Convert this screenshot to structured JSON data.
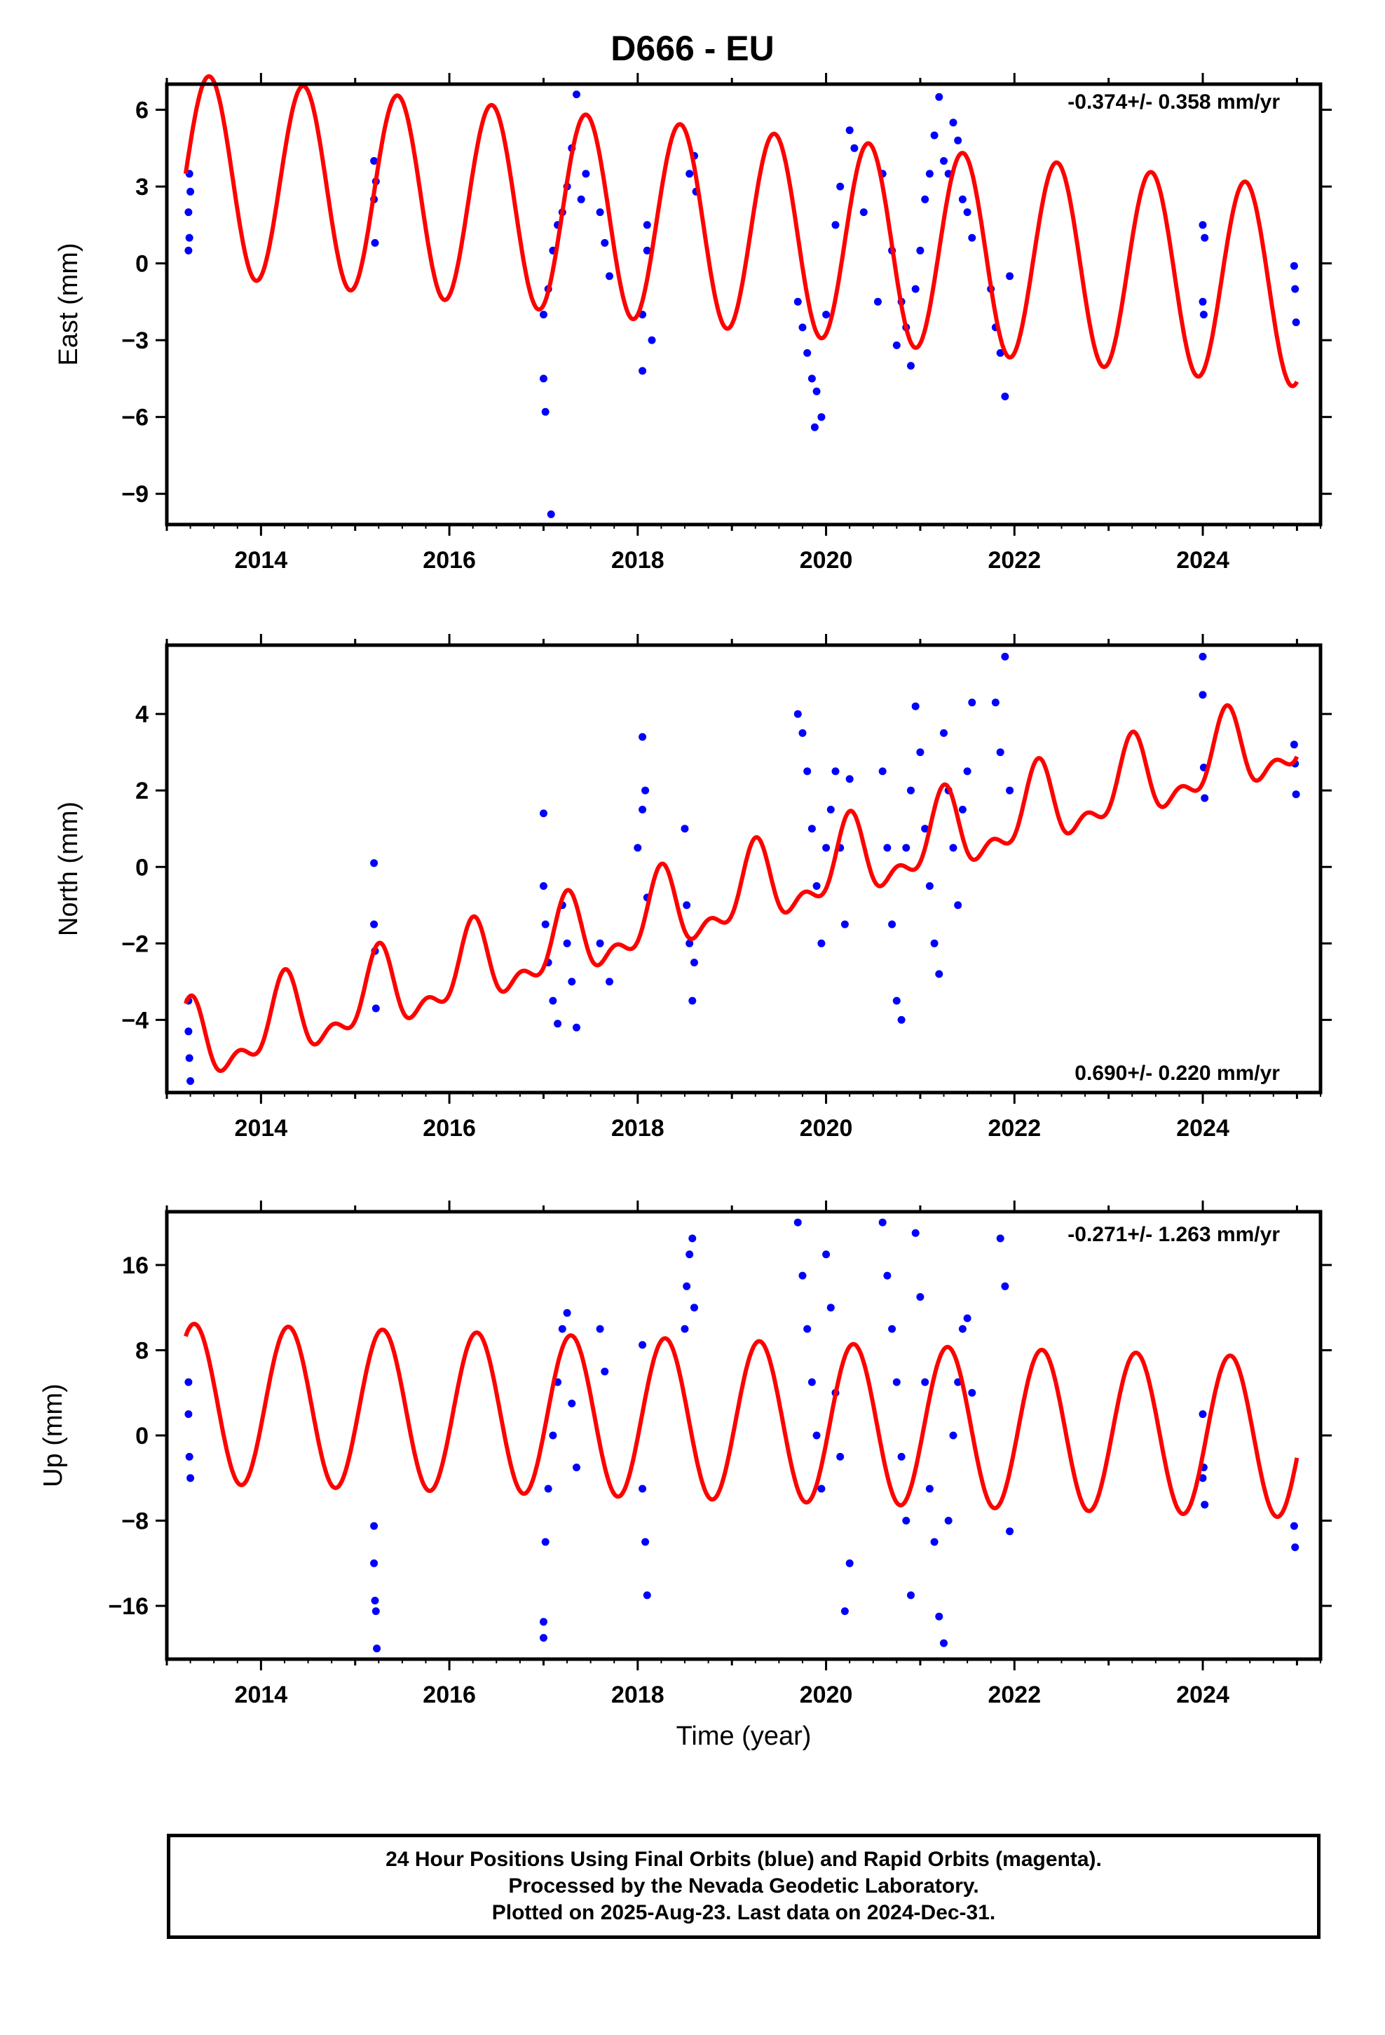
{
  "header": {
    "title": "D666 - EU"
  },
  "footer": {
    "line1": "24 Hour Positions Using Final Orbits (blue) and Rapid Orbits (magenta).",
    "line2": "Processed by the Nevada Geodetic Laboratory.",
    "line3": "Plotted on 2025-Aug-23. Last data on 2024-Dec-31."
  },
  "colors": {
    "data": "#0000ff",
    "model": "#ff0000",
    "frame": "#000000"
  },
  "chart_data": [
    {
      "type": "scatter",
      "title": "D666 - EU",
      "ylabel": "East (mm)",
      "xlabel": "",
      "rate": "-0.374+/- 0.358 mm/yr",
      "xlim": [
        2013.0,
        2025.25
      ],
      "ylim": [
        -10.2,
        7.0
      ],
      "xticks": [
        2014,
        2016,
        2018,
        2020,
        2022,
        2024
      ],
      "yticks": [
        6,
        3,
        0,
        -3,
        -6,
        -9
      ],
      "ytick_labels": [
        "6",
        "3",
        "0",
        "−3",
        "−6",
        "−9"
      ],
      "model": {
        "start_year": 2013.2,
        "end_year": 2025.0,
        "offset": 3.5,
        "rate": -0.374,
        "annual_amp": 3.9,
        "annual_phase": 0.0
      },
      "series": [
        {
          "name": "Final Orbits",
          "x": [
            2013.23,
            2013.23,
            2013.24,
            2013.24,
            2013.25,
            2015.2,
            2015.2,
            2015.21,
            2015.22,
            2017.0,
            2017.0,
            2017.02,
            2017.05,
            2017.1,
            2017.15,
            2017.2,
            2017.25,
            2017.3,
            2017.35,
            2017.4,
            2017.45,
            2017.6,
            2017.65,
            2017.7,
            2017.08,
            2018.05,
            2018.05,
            2018.1,
            2018.1,
            2018.15,
            2018.55,
            2018.6,
            2018.62,
            2019.7,
            2019.75,
            2019.8,
            2019.85,
            2019.9,
            2019.95,
            2019.88,
            2020.0,
            2020.1,
            2020.15,
            2020.25,
            2020.3,
            2020.4,
            2020.55,
            2020.6,
            2020.7,
            2020.75,
            2020.8,
            2020.85,
            2020.9,
            2020.95,
            2021.0,
            2021.05,
            2021.1,
            2021.15,
            2021.2,
            2021.25,
            2021.3,
            2021.35,
            2021.4,
            2021.45,
            2021.5,
            2021.55,
            2021.75,
            2021.8,
            2021.85,
            2021.9,
            2021.95,
            2024.0,
            2024.0,
            2024.01,
            2024.02,
            2024.97,
            2024.98,
            2024.99
          ],
          "y": [
            0.5,
            2.0,
            3.5,
            1.0,
            2.8,
            4.0,
            2.5,
            0.8,
            3.2,
            -2.0,
            -4.5,
            -5.8,
            -1.0,
            0.5,
            1.5,
            2.0,
            3.0,
            4.5,
            6.6,
            2.5,
            3.5,
            2.0,
            0.8,
            -0.5,
            -9.8,
            -4.2,
            -2.0,
            0.5,
            1.5,
            -3.0,
            3.5,
            4.2,
            2.8,
            -1.5,
            -2.5,
            -3.5,
            -4.5,
            -5.0,
            -6.0,
            -6.4,
            -2.0,
            1.5,
            3.0,
            5.2,
            4.5,
            2.0,
            -1.5,
            3.5,
            0.5,
            -3.2,
            -1.5,
            -2.5,
            -4.0,
            -1.0,
            0.5,
            2.5,
            3.5,
            5.0,
            6.5,
            4.0,
            3.5,
            5.5,
            4.8,
            2.5,
            2.0,
            1.0,
            -1.0,
            -2.5,
            -3.5,
            -5.2,
            -0.5,
            1.5,
            -1.5,
            -2.0,
            1.0,
            -0.1,
            -1.0,
            -2.3
          ]
        }
      ]
    },
    {
      "type": "scatter",
      "title": "",
      "ylabel": "North (mm)",
      "xlabel": "",
      "rate": "0.690+/- 0.220 mm/yr",
      "xlim": [
        2013.0,
        2025.25
      ],
      "ylim": [
        -5.9,
        5.8
      ],
      "xticks": [
        2014,
        2016,
        2018,
        2020,
        2022,
        2024
      ],
      "yticks": [
        4,
        2,
        0,
        -2,
        -4
      ],
      "ytick_labels": [
        "4",
        "2",
        "0",
        "−2",
        "−4"
      ],
      "model": {
        "start_year": 2013.2,
        "end_year": 2025.0,
        "offset": -4.8,
        "rate": 0.69,
        "annual_amp": 0.9,
        "annual_phase": 1.3,
        "semi_amp": 0.5,
        "semi_phase": 0.8
      },
      "series": [
        {
          "name": "Final Orbits",
          "x": [
            2013.23,
            2013.23,
            2013.24,
            2013.25,
            2015.2,
            2015.2,
            2015.21,
            2015.22,
            2017.0,
            2017.0,
            2017.02,
            2017.05,
            2017.1,
            2017.15,
            2017.2,
            2017.25,
            2017.3,
            2017.35,
            2017.6,
            2017.7,
            2018.0,
            2018.05,
            2018.05,
            2018.08,
            2018.1,
            2018.5,
            2018.52,
            2018.55,
            2018.58,
            2018.6,
            2019.7,
            2019.75,
            2019.8,
            2019.85,
            2019.9,
            2019.95,
            2020.0,
            2020.05,
            2020.1,
            2020.15,
            2020.2,
            2020.25,
            2020.6,
            2020.65,
            2020.7,
            2020.75,
            2020.8,
            2020.85,
            2020.9,
            2020.95,
            2021.0,
            2021.05,
            2021.1,
            2021.15,
            2021.2,
            2021.25,
            2021.3,
            2021.35,
            2021.4,
            2021.45,
            2021.5,
            2021.55,
            2021.8,
            2021.85,
            2021.9,
            2021.95,
            2024.0,
            2024.0,
            2024.01,
            2024.02,
            2024.97,
            2024.98,
            2024.99
          ],
          "y": [
            -3.5,
            -4.3,
            -5.0,
            -5.6,
            0.1,
            -1.5,
            -2.2,
            -3.7,
            1.4,
            -0.5,
            -1.5,
            -2.5,
            -3.5,
            -4.1,
            -1.0,
            -2.0,
            -3.0,
            -4.2,
            -2.0,
            -3.0,
            0.5,
            1.5,
            3.4,
            2.0,
            -0.8,
            1.0,
            -1.0,
            -2.0,
            -3.5,
            -2.5,
            4.0,
            3.5,
            2.5,
            1.0,
            -0.5,
            -2.0,
            0.5,
            1.5,
            2.5,
            0.5,
            -1.5,
            2.3,
            2.5,
            0.5,
            -1.5,
            -3.5,
            -4.0,
            0.5,
            2.0,
            4.2,
            3.0,
            1.0,
            -0.5,
            -2.0,
            -2.8,
            3.5,
            2.0,
            0.5,
            -1.0,
            1.5,
            2.5,
            4.3,
            4.3,
            3.0,
            5.5,
            2.0,
            5.5,
            4.5,
            2.6,
            1.8,
            3.2,
            2.7,
            1.9
          ]
        }
      ]
    },
    {
      "type": "scatter",
      "title": "",
      "ylabel": "Up (mm)",
      "xlabel": "Time (year)",
      "rate": "-0.271+/- 1.263 mm/yr",
      "xlim": [
        2013.0,
        2025.25
      ],
      "ylim": [
        -21,
        21
      ],
      "xticks": [
        2014,
        2016,
        2018,
        2020,
        2022,
        2024
      ],
      "yticks": [
        16,
        8,
        0,
        -8,
        -16
      ],
      "ytick_labels": [
        "16",
        "8",
        "0",
        "−8",
        "−16"
      ],
      "model": {
        "start_year": 2013.2,
        "end_year": 2025.0,
        "offset": 3.0,
        "rate": -0.271,
        "annual_amp": 7.5,
        "annual_phase": 1.0
      },
      "series": [
        {
          "name": "Final Orbits",
          "x": [
            2013.23,
            2013.23,
            2013.24,
            2013.25,
            2015.2,
            2015.2,
            2015.21,
            2015.22,
            2015.23,
            2017.0,
            2017.0,
            2017.02,
            2017.05,
            2017.1,
            2017.15,
            2017.2,
            2017.25,
            2017.3,
            2017.35,
            2017.6,
            2017.65,
            2018.05,
            2018.05,
            2018.08,
            2018.1,
            2018.5,
            2018.52,
            2018.55,
            2018.58,
            2018.6,
            2019.7,
            2019.75,
            2019.8,
            2019.85,
            2019.9,
            2019.95,
            2020.0,
            2020.05,
            2020.1,
            2020.15,
            2020.2,
            2020.25,
            2020.6,
            2020.65,
            2020.7,
            2020.75,
            2020.8,
            2020.85,
            2020.9,
            2020.95,
            2021.0,
            2021.05,
            2021.1,
            2021.15,
            2021.2,
            2021.25,
            2021.3,
            2021.35,
            2021.4,
            2021.45,
            2021.5,
            2021.55,
            2021.85,
            2021.9,
            2021.95,
            2024.0,
            2024.0,
            2024.01,
            2024.02,
            2024.97,
            2024.98
          ],
          "y": [
            5.0,
            2.0,
            -2.0,
            -4.0,
            -8.5,
            -12.0,
            -15.5,
            -16.5,
            -20.0,
            -17.5,
            -19.0,
            -10.0,
            -5.0,
            0.0,
            5.0,
            10.0,
            11.5,
            3.0,
            -3.0,
            10.0,
            6.0,
            8.5,
            -5.0,
            -10.0,
            -15.0,
            10.0,
            14.0,
            17.0,
            18.5,
            12.0,
            20.0,
            15.0,
            10.0,
            5.0,
            0.0,
            -5.0,
            17.0,
            12.0,
            4.0,
            -2.0,
            -16.5,
            -12.0,
            20.0,
            15.0,
            10.0,
            5.0,
            -2.0,
            -8.0,
            -15.0,
            19.0,
            13.0,
            5.0,
            -5.0,
            -10.0,
            -17.0,
            -19.5,
            -8.0,
            0.0,
            5.0,
            10.0,
            11.0,
            4.0,
            18.5,
            14.0,
            -9.0,
            -4.0,
            2.0,
            -3.0,
            -6.5,
            -8.5,
            -10.5
          ]
        }
      ]
    }
  ]
}
